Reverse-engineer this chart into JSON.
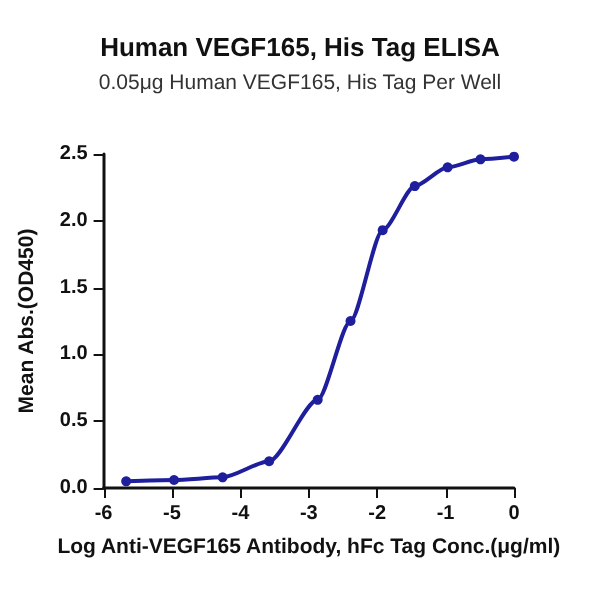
{
  "chart_data": {
    "type": "line",
    "title": "Human VEGF165, His Tag ELISA",
    "subtitle": "0.05μg Human VEGF165, His Tag Per Well",
    "xlabel": "Log Anti-VEGF165 Antibody, hFc Tag Conc.(μg/ml)",
    "ylabel": "Mean Abs.(OD450)",
    "series": [
      {
        "color": "#1f1f9e",
        "x": [
          -5.67,
          -4.97,
          -4.26,
          -3.58,
          -2.87,
          -2.39,
          -1.92,
          -1.45,
          -0.97,
          -0.49,
          0.0
        ],
        "values": [
          0.05,
          0.06,
          0.08,
          0.2,
          0.66,
          1.25,
          1.93,
          2.26,
          2.4,
          2.46,
          2.48
        ]
      }
    ],
    "xlim": [
      -6,
      0
    ],
    "xticks": [
      -6,
      -5,
      -4,
      -3,
      -2,
      -1,
      0
    ],
    "ylim": [
      0,
      2.5
    ],
    "yticks": [
      {
        "value": 0,
        "label": "0.0"
      },
      {
        "value": 0.5,
        "label": "0.5"
      },
      {
        "value": 1,
        "label": "1.0"
      },
      {
        "value": 1.5,
        "label": "1.5"
      },
      {
        "value": 2,
        "label": "2.0"
      },
      {
        "value": 2.5,
        "label": "2.5"
      }
    ],
    "grid": false,
    "marker": "circle",
    "line_style": "solid"
  }
}
